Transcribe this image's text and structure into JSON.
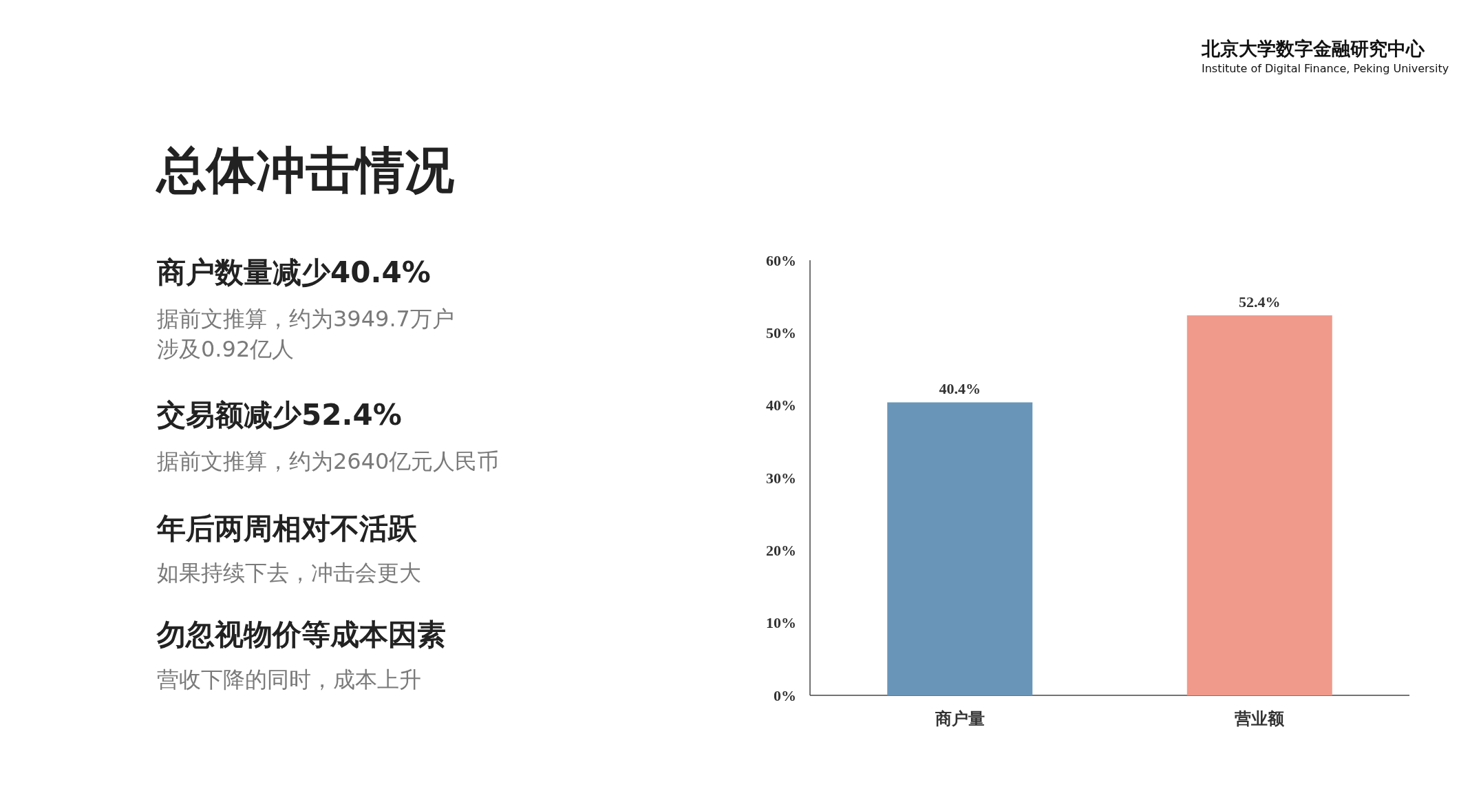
{
  "chart_data": {
    "type": "bar",
    "title": "总体冲击情况",
    "categories": [
      "商户量",
      "营业额"
    ],
    "values": [
      40.4,
      52.4
    ],
    "colors": [
      "#6995b8",
      "#ef9a8b"
    ],
    "value_labels": [
      "40.4%",
      "52.4%"
    ],
    "ylim": [
      0,
      60
    ],
    "yticks": [
      {
        "value": 0,
        "label": "0%"
      },
      {
        "value": 10,
        "label": "10%"
      },
      {
        "value": 20,
        "label": "20%"
      },
      {
        "value": 30,
        "label": "30%"
      },
      {
        "value": 40,
        "label": "40%"
      },
      {
        "value": 50,
        "label": "50%"
      },
      {
        "value": 60,
        "label": "60%"
      }
    ],
    "annotations": [
      "北京大学数字金融研究中心",
      "Institute of Digital Finance, Peking University",
      "商户数量减少40.4%",
      "据前文推算，约为3949.7万户",
      "涉及0.92亿人",
      "交易额减少52.4%",
      "据前文推算，约为2640亿元人民币",
      "年后两周相对不活跃",
      "如果持续下去，冲击会更大",
      "勿忽视物价等成本因素",
      "营收下降的同时，成本上升"
    ]
  }
}
